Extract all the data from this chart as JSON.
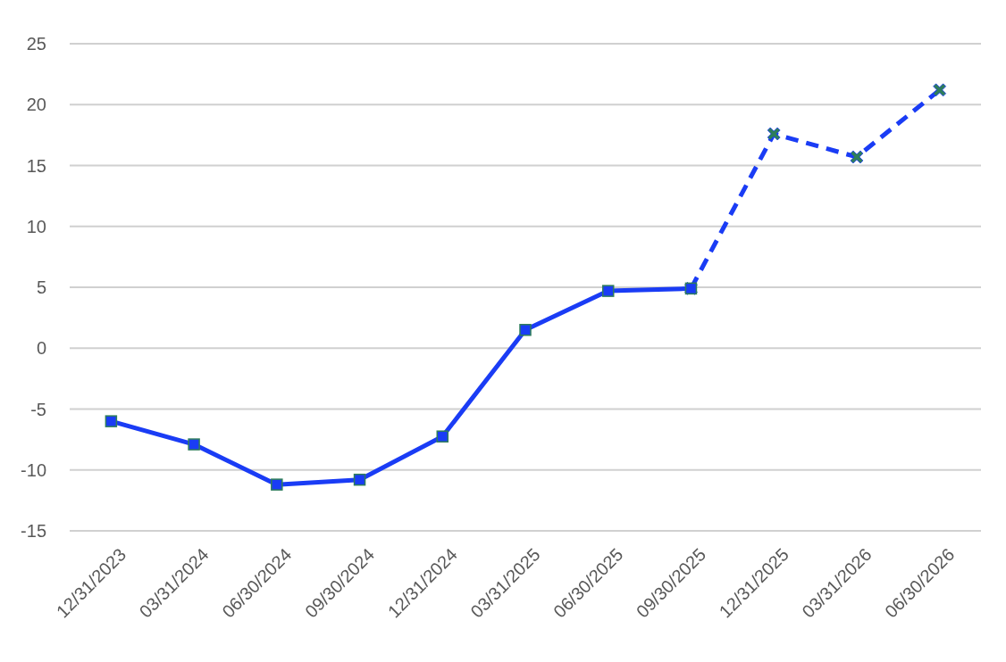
{
  "chart_data": {
    "type": "line",
    "categories": [
      "12/31/2023",
      "03/31/2024",
      "06/30/2024",
      "09/30/2024",
      "12/31/2024",
      "03/31/2025",
      "06/30/2025",
      "09/30/2025",
      "12/31/2025",
      "03/31/2026",
      "06/30/2026"
    ],
    "series": [
      {
        "color": "#1a3cf5",
        "line_style": "solid",
        "marker": "square",
        "values": [
          -6.0,
          -7.9,
          -11.2,
          -10.8,
          -7.25,
          1.5,
          4.7,
          4.9,
          null,
          null,
          null
        ]
      },
      {
        "color": "#1a3cf5",
        "line_style": "dashed",
        "marker": "cross",
        "values": [
          null,
          null,
          null,
          null,
          null,
          null,
          null,
          4.9,
          17.6,
          15.7,
          21.2
        ]
      }
    ],
    "ylim": [
      -15,
      25
    ],
    "yticks": [
      -15,
      -10,
      -5,
      0,
      5,
      10,
      15,
      20,
      25
    ],
    "grid": "y"
  }
}
